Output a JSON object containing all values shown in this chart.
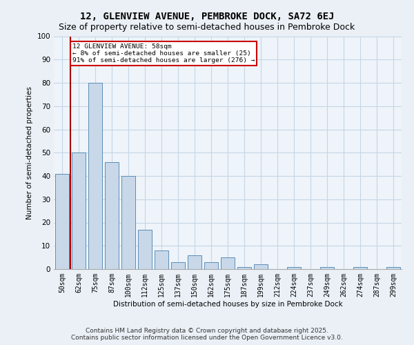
{
  "title": "12, GLENVIEW AVENUE, PEMBROKE DOCK, SA72 6EJ",
  "subtitle": "Size of property relative to semi-detached houses in Pembroke Dock",
  "xlabel": "Distribution of semi-detached houses by size in Pembroke Dock",
  "ylabel": "Number of semi-detached properties",
  "categories": [
    "50sqm",
    "62sqm",
    "75sqm",
    "87sqm",
    "100sqm",
    "112sqm",
    "125sqm",
    "137sqm",
    "150sqm",
    "162sqm",
    "175sqm",
    "187sqm",
    "199sqm",
    "212sqm",
    "224sqm",
    "237sqm",
    "249sqm",
    "262sqm",
    "274sqm",
    "287sqm",
    "299sqm"
  ],
  "values": [
    41,
    50,
    80,
    46,
    40,
    17,
    8,
    3,
    6,
    3,
    5,
    1,
    2,
    0,
    1,
    0,
    1,
    0,
    1,
    0,
    1
  ],
  "bar_color": "#c8d8e8",
  "bar_edge_color": "#5b8db8",
  "red_line_x": 0.5,
  "annotation_title": "12 GLENVIEW AVENUE: 58sqm",
  "annotation_line1": "← 8% of semi-detached houses are smaller (25)",
  "annotation_line2": "91% of semi-detached houses are larger (276) →",
  "annotation_box_color": "#ffffff",
  "annotation_box_edge_color": "#cc0000",
  "red_line_color": "#aa0000",
  "ylim": [
    0,
    100
  ],
  "yticks": [
    0,
    10,
    20,
    30,
    40,
    50,
    60,
    70,
    80,
    90,
    100
  ],
  "footer1": "Contains HM Land Registry data © Crown copyright and database right 2025.",
  "footer2": "Contains public sector information licensed under the Open Government Licence v3.0.",
  "bg_color": "#eaf0f6",
  "plot_bg_color": "#eef4fa",
  "grid_color": "#c5d5e5",
  "title_fontsize": 10,
  "subtitle_fontsize": 9,
  "axis_label_fontsize": 7.5,
  "tick_fontsize": 7,
  "footer_fontsize": 6.5
}
